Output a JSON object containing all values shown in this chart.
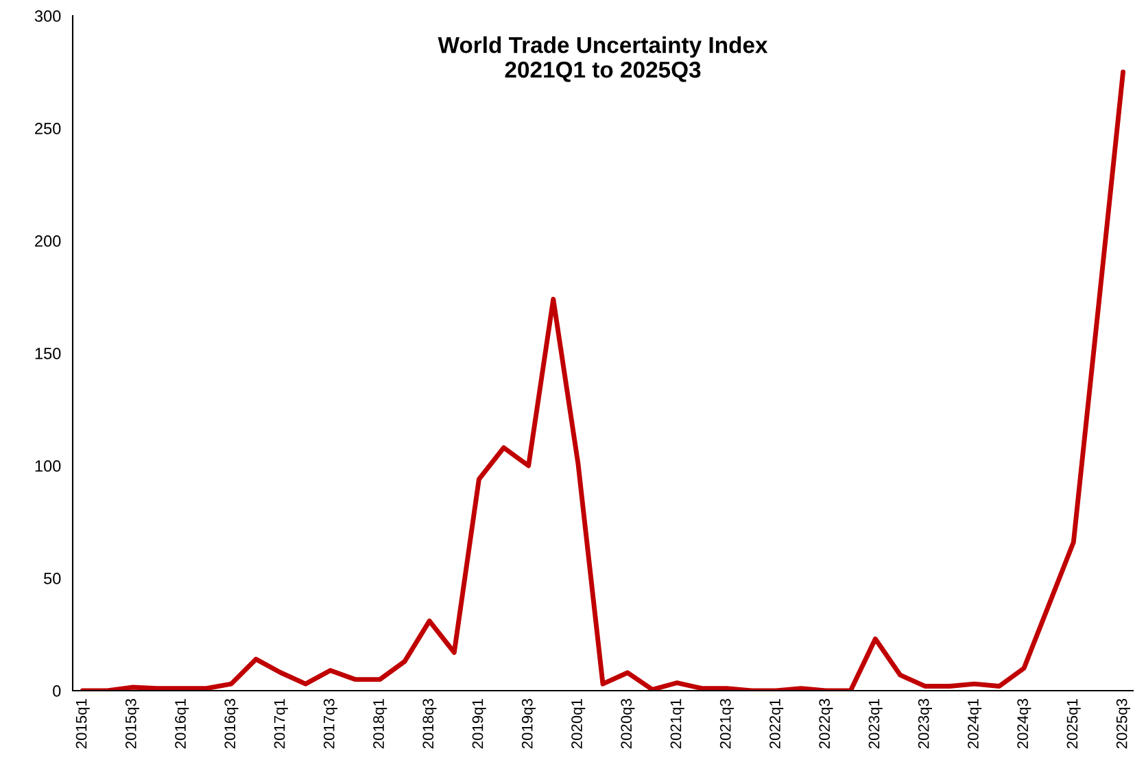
{
  "chart_data": {
    "type": "line",
    "title": "World Trade Uncertainty Index\n2021Q1 to 2025Q3",
    "categories": [
      "2015q1",
      null,
      "2015q3",
      null,
      "2016q1",
      null,
      "2016q3",
      null,
      "2017q1",
      null,
      "2017q3",
      null,
      "2018q1",
      null,
      "2018q3",
      null,
      "2019q1",
      null,
      "2019q3",
      null,
      "2020q1",
      null,
      "2020q3",
      null,
      "2021q1",
      null,
      "2021q3",
      null,
      "2022q1",
      null,
      "2022q3",
      null,
      "2023q1",
      null,
      "2023q3",
      null,
      "2024q1",
      null,
      "2024q3",
      null,
      "2025q1",
      null,
      "2025q3"
    ],
    "series": [
      {
        "color": "#c00000",
        "values": [
          0,
          0,
          1.5,
          1,
          1,
          1,
          3,
          14,
          8,
          3,
          9,
          5,
          5,
          13,
          31,
          17,
          94,
          108,
          100,
          174,
          101,
          3,
          8,
          0.5,
          3.5,
          1,
          1,
          0,
          0,
          1,
          0,
          0,
          23,
          7,
          2,
          2,
          3,
          2,
          10,
          38,
          66,
          170,
          275
        ]
      }
    ],
    "ylim": [
      0,
      300
    ],
    "yticks": [
      0,
      50,
      100,
      150,
      200,
      250,
      300
    ],
    "grid": false,
    "marker": "none",
    "line_style": "solid"
  }
}
